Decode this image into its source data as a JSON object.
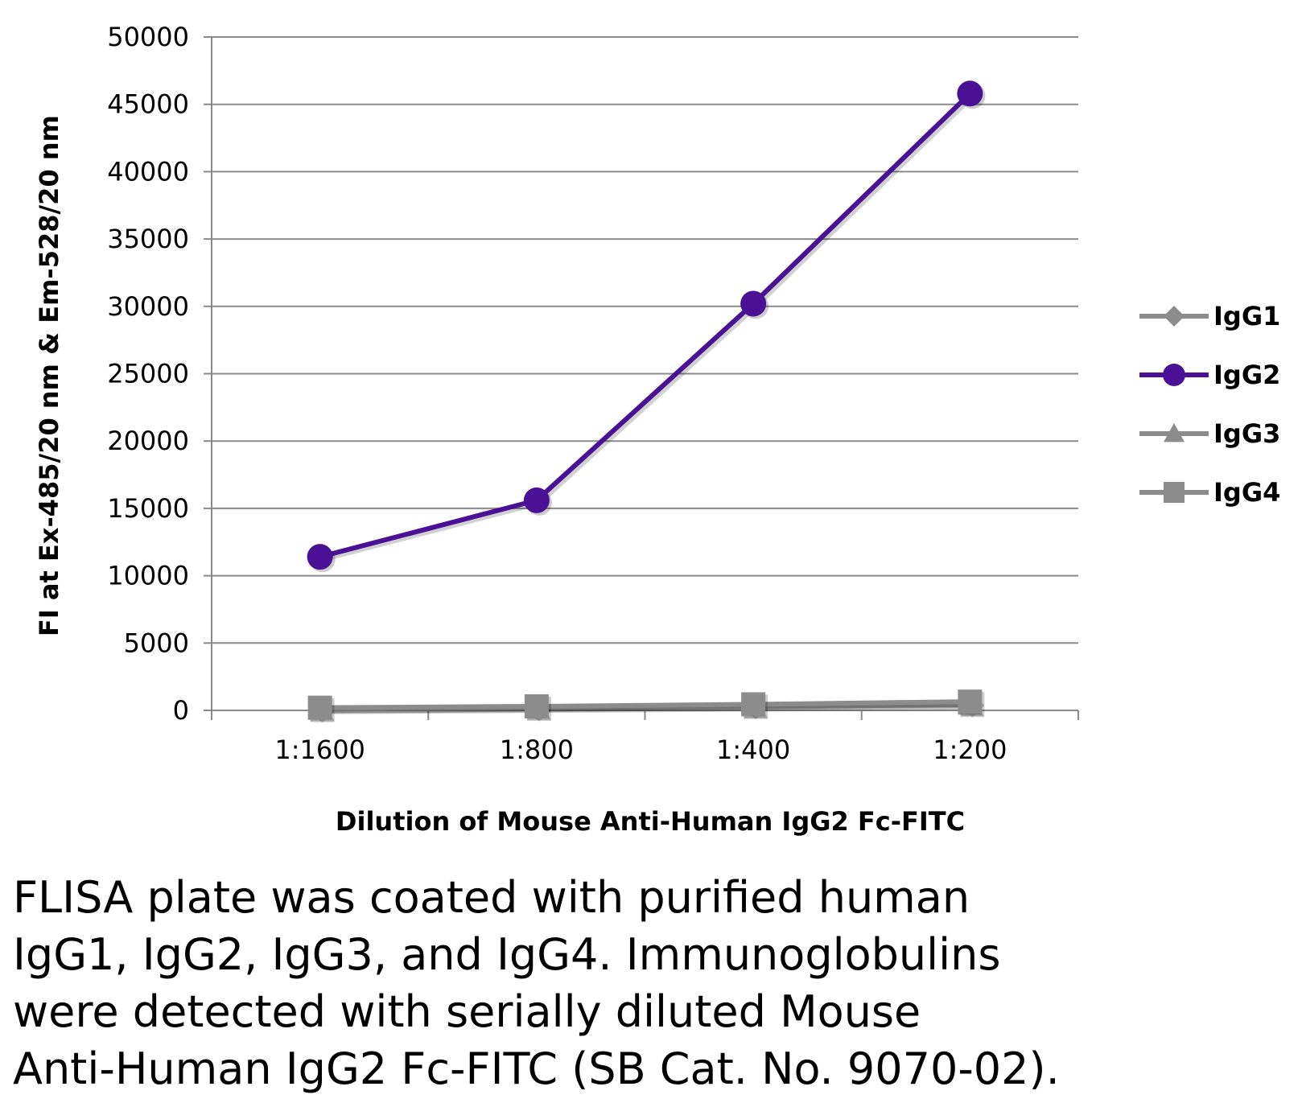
{
  "chart_data": {
    "type": "line",
    "categories": [
      "1:1600",
      "1:800",
      "1:400",
      "1:200"
    ],
    "series": [
      {
        "name": "IgG1",
        "values": [
          150,
          250,
          400,
          550
        ],
        "color": "#8c8c8c",
        "marker": "diamond"
      },
      {
        "name": "IgG2",
        "values": [
          11400,
          15600,
          30200,
          45800
        ],
        "color": "#4a1196",
        "marker": "circle"
      },
      {
        "name": "IgG3",
        "values": [
          100,
          200,
          300,
          400
        ],
        "color": "#8c8c8c",
        "marker": "triangle"
      },
      {
        "name": "IgG4",
        "values": [
          200,
          300,
          450,
          650
        ],
        "color": "#8c8c8c",
        "marker": "square"
      }
    ],
    "title": "",
    "xlabel": "Dilution of Mouse Anti-Human IgG2 Fc-FITC",
    "ylabel": "FI at Ex-485/20 nm & Em-528/20 nm",
    "ylim": [
      0,
      50000
    ],
    "yticks": [
      "0",
      "5000",
      "10000",
      "15000",
      "20000",
      "25000",
      "30000",
      "35000",
      "40000",
      "45000",
      "50000"
    ],
    "grid": true,
    "legend_position": "right"
  },
  "caption": "FLISA plate was coated with purified human\nIgG1, IgG2, IgG3, and IgG4.  Immunoglobulins\nwere detected with serially diluted Mouse\nAnti-Human IgG2 Fc-FITC (SB Cat. No. 9070-02)."
}
